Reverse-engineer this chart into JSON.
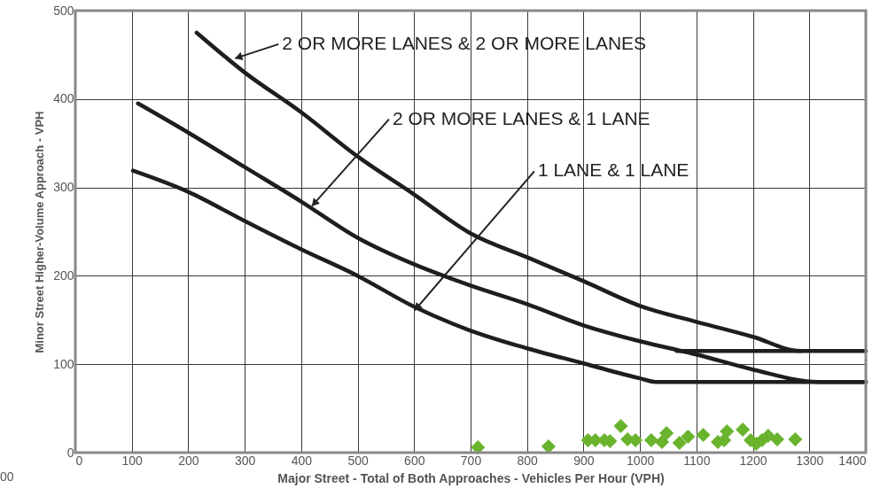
{
  "chart_data": {
    "type": "line",
    "xlabel": "Major Street - Total of Both Approaches - Vehicles Per Hour (VPH)",
    "ylabel": "Minor Street Higher-Volume Approach - VPH",
    "xlim": [
      0,
      1400
    ],
    "ylim": [
      0,
      500
    ],
    "xticks": [
      0,
      100,
      200,
      300,
      400,
      500,
      600,
      700,
      800,
      900,
      1000,
      1100,
      1200,
      1300,
      1400
    ],
    "yticks": [
      0,
      100,
      200,
      300,
      400,
      500
    ],
    "grid": true,
    "line_style": "solid",
    "series": [
      {
        "color": "#1e1e1e",
        "x": [
          215,
          300,
          400,
          500,
          600,
          700,
          800,
          900,
          1000,
          1100,
          1200,
          1284,
          1400
        ],
        "values": [
          475,
          430,
          385,
          335,
          292,
          248,
          221,
          194,
          166,
          148,
          131,
          115,
          115
        ]
      },
      {
        "color": "#1e1e1e",
        "x": [
          111,
          200,
          300,
          400,
          500,
          600,
          700,
          800,
          900,
          1000,
          1100,
          1200,
          1316,
          1400
        ],
        "values": [
          395,
          362,
          323,
          284,
          243,
          213,
          189,
          168,
          144,
          126,
          111,
          94,
          80,
          80
        ]
      },
      {
        "color": "#1e1e1e",
        "x": [
          102,
          200,
          300,
          400,
          500,
          600,
          700,
          800,
          900,
          1000,
          1028,
          1400
        ],
        "values": [
          319,
          295,
          262,
          230,
          200,
          165,
          138,
          118,
          101,
          84,
          80,
          80
        ]
      },
      {
        "color": "#1e1e1e",
        "x": [
          1065,
          1284
        ],
        "values": [
          115,
          115
        ]
      },
      {
        "type": "scatter",
        "marker": "diamond",
        "color": "#6ab42d",
        "x": [
          713,
          838,
          908,
          921,
          937,
          947,
          966,
          978,
          992,
          1020,
          1039,
          1047,
          1070,
          1085,
          1112,
          1138,
          1149,
          1154,
          1182,
          1196,
          1206,
          1216,
          1227,
          1243,
          1275
        ],
        "values": [
          6,
          7,
          14,
          14,
          14,
          13,
          30,
          15,
          14,
          14,
          12,
          22,
          11,
          18,
          20,
          12,
          14,
          24,
          26,
          14,
          10,
          14,
          19,
          15,
          15
        ]
      }
    ],
    "annotations": [
      {
        "text": "2 OR MORE LANES & 2 OR MORE LANES",
        "x": 283,
        "y": 446
      },
      {
        "text": "2 OR MORE LANES & 1 LANE",
        "x": 419,
        "y": 279
      },
      {
        "text": "1 LANE & 1 LANE",
        "x": 601,
        "y": 161
      },
      "00"
    ]
  }
}
